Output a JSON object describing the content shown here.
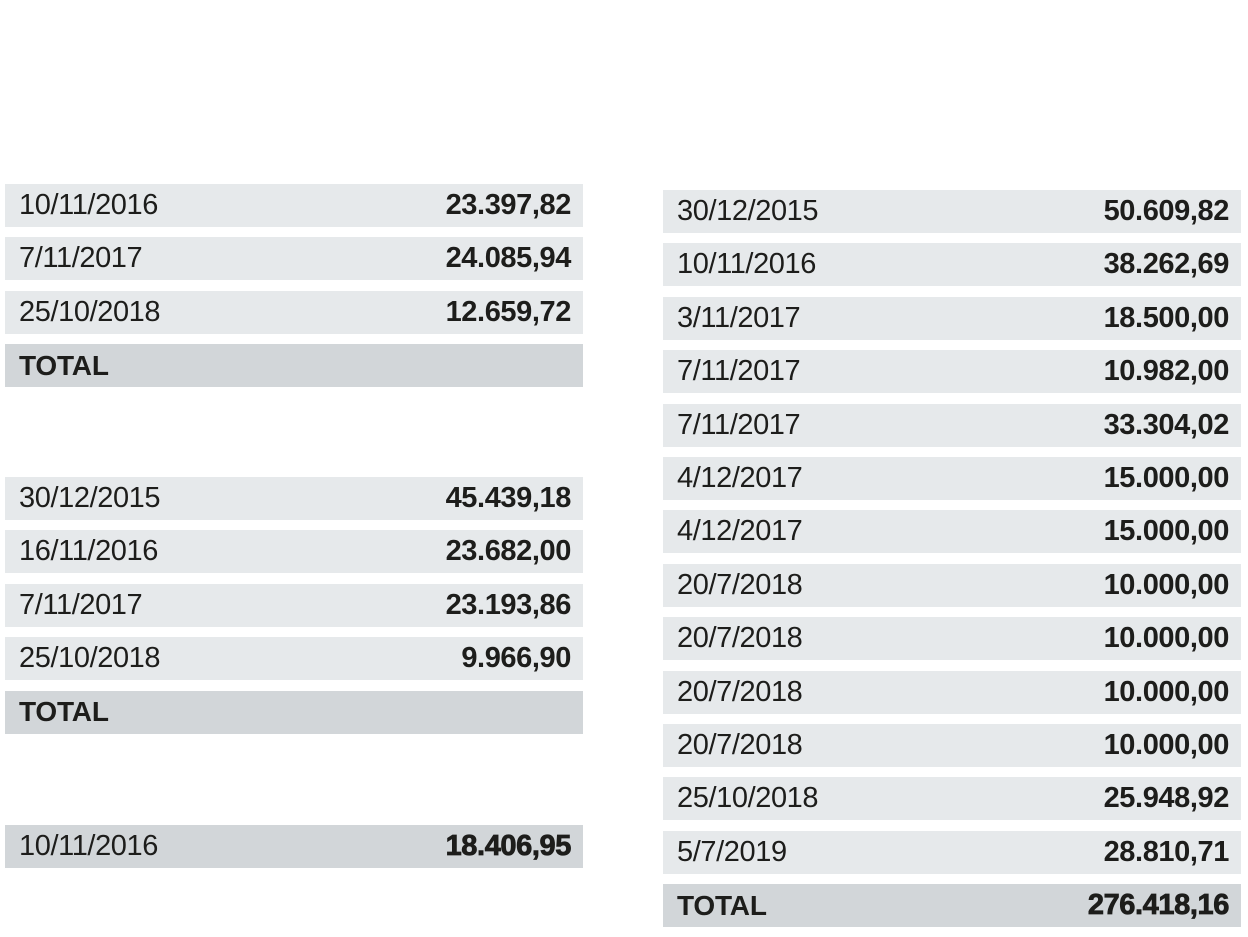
{
  "colors": {
    "row_background": "#e6e9eb",
    "total_row_background": "#d2d6d9",
    "text": "#1d1d1b",
    "page_background": "#ffffff"
  },
  "tables": {
    "left_top": {
      "rows": [
        {
          "date": "10/11/2016",
          "value": "23.397,82"
        },
        {
          "date": "7/11/2017",
          "value": "24.085,94"
        },
        {
          "date": "25/10/2018",
          "value": "12.659,72"
        }
      ],
      "total_label": "TOTAL",
      "total_value": ""
    },
    "left_middle": {
      "rows": [
        {
          "date": "30/12/2015",
          "value": "45.439,18"
        },
        {
          "date": "16/11/2016",
          "value": "23.682,00"
        },
        {
          "date": "7/11/2017",
          "value": "23.193,86"
        },
        {
          "date": "25/10/2018",
          "value": "9.966,90"
        }
      ],
      "total_label": "TOTAL",
      "total_value": ""
    },
    "left_bottom": {
      "rows": [
        {
          "date": "10/11/2016",
          "value": "18.406,95"
        }
      ]
    },
    "right": {
      "rows": [
        {
          "date": "30/12/2015",
          "value": "50.609,82"
        },
        {
          "date": "10/11/2016",
          "value": "38.262,69"
        },
        {
          "date": "3/11/2017",
          "value": "18.500,00"
        },
        {
          "date": "7/11/2017",
          "value": "10.982,00"
        },
        {
          "date": "7/11/2017",
          "value": "33.304,02"
        },
        {
          "date": "4/12/2017",
          "value": "15.000,00"
        },
        {
          "date": "4/12/2017",
          "value": "15.000,00"
        },
        {
          "date": "20/7/2018",
          "value": "10.000,00"
        },
        {
          "date": "20/7/2018",
          "value": "10.000,00"
        },
        {
          "date": "20/7/2018",
          "value": "10.000,00"
        },
        {
          "date": "20/7/2018",
          "value": "10.000,00"
        },
        {
          "date": "25/10/2018",
          "value": "25.948,92"
        },
        {
          "date": "5/7/2019",
          "value": "28.810,71"
        }
      ],
      "total_label": "TOTAL",
      "total_value": "276.418,16"
    }
  },
  "chart_data": [
    {
      "type": "table",
      "name": "left-top-table",
      "columns": [
        "date",
        "amount"
      ],
      "rows": [
        [
          "10/11/2016",
          23397.82
        ],
        [
          "7/11/2017",
          24085.94
        ],
        [
          "25/10/2018",
          12659.72
        ]
      ],
      "total_label": "TOTAL",
      "total_value_shown": null,
      "number_format": "european (dot thousands, comma decimals)"
    },
    {
      "type": "table",
      "name": "left-middle-table",
      "columns": [
        "date",
        "amount"
      ],
      "rows": [
        [
          "30/12/2015",
          45439.18
        ],
        [
          "16/11/2016",
          23682.0
        ],
        [
          "7/11/2017",
          23193.86
        ],
        [
          "25/10/2018",
          9966.9
        ]
      ],
      "total_label": "TOTAL",
      "total_value_shown": null,
      "number_format": "european (dot thousands, comma decimals)"
    },
    {
      "type": "table",
      "name": "left-bottom-highlight-row",
      "columns": [
        "date",
        "amount"
      ],
      "rows": [
        [
          "10/11/2016",
          18406.95
        ]
      ],
      "total_label": null,
      "total_value_shown": null,
      "number_format": "european (dot thousands, comma decimals)"
    },
    {
      "type": "table",
      "name": "right-table",
      "columns": [
        "date",
        "amount"
      ],
      "rows": [
        [
          "30/12/2015",
          50609.82
        ],
        [
          "10/11/2016",
          38262.69
        ],
        [
          "3/11/2017",
          18500.0
        ],
        [
          "7/11/2017",
          10982.0
        ],
        [
          "7/11/2017",
          33304.02
        ],
        [
          "4/12/2017",
          15000.0
        ],
        [
          "4/12/2017",
          15000.0
        ],
        [
          "20/7/2018",
          10000.0
        ],
        [
          "20/7/2018",
          10000.0
        ],
        [
          "20/7/2018",
          10000.0
        ],
        [
          "20/7/2018",
          10000.0
        ],
        [
          "25/10/2018",
          25948.92
        ],
        [
          "5/7/2019",
          28810.71
        ]
      ],
      "total_label": "TOTAL",
      "total_value_shown": 276418.16,
      "number_format": "european (dot thousands, comma decimals)"
    }
  ]
}
